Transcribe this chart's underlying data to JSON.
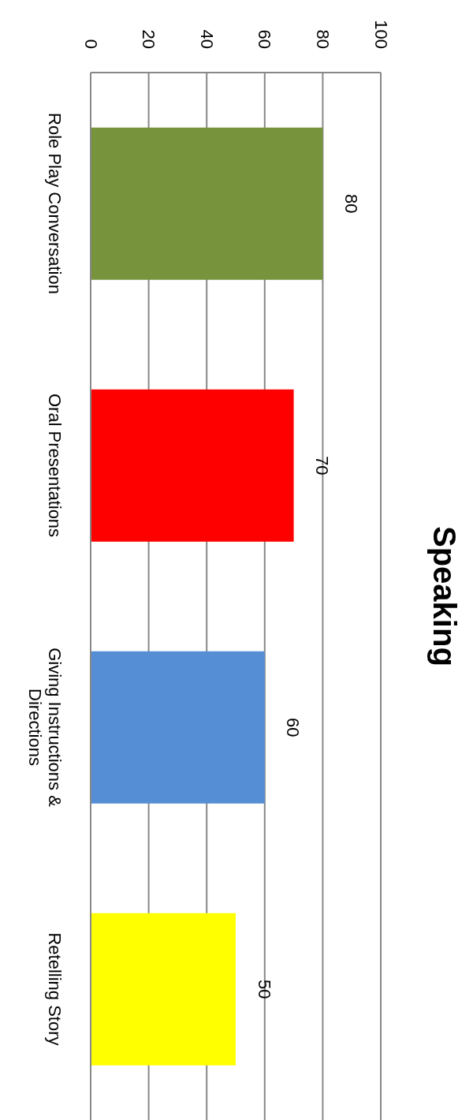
{
  "chart_data": {
    "type": "bar",
    "orientation": "horizontal",
    "title": "Speaking",
    "categories": [
      "Role Play Conversation",
      "Oral Presentations",
      "Giving Instructions & Directions",
      "Retelling Story"
    ],
    "values": [
      80,
      70,
      60,
      50
    ],
    "colors": [
      "#77933c",
      "#ff0000",
      "#558ed5",
      "#ffff00"
    ],
    "xlim": [
      0,
      100
    ],
    "xticks": [
      0,
      20,
      40,
      60,
      80,
      100
    ],
    "grid": "x",
    "data_labels": true
  }
}
